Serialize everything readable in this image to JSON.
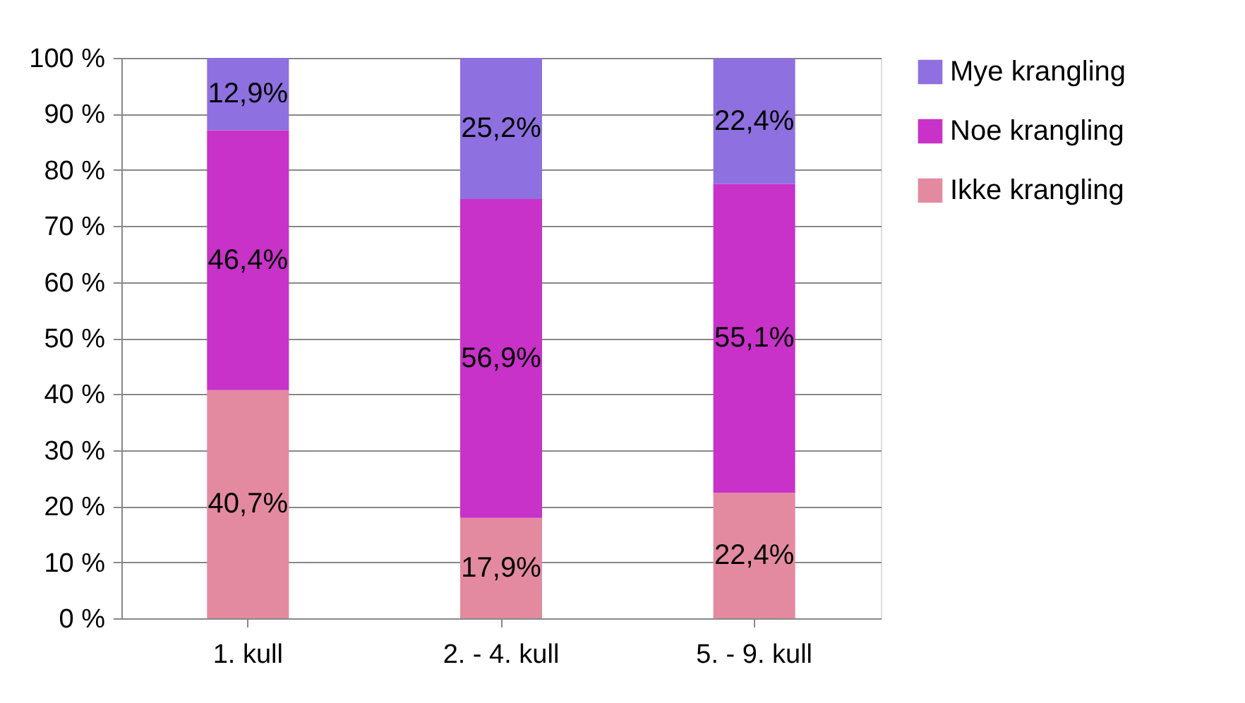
{
  "chart_data": {
    "type": "bar",
    "stacked": true,
    "categories": [
      "1. kull",
      "2. - 4. kull",
      "5. - 9. kull"
    ],
    "series": [
      {
        "name": "Ikke krangling",
        "color": "#e48aa0",
        "values": [
          40.7,
          17.9,
          22.4
        ],
        "value_labels": [
          "40,7%",
          "17,9%",
          "22,4%"
        ]
      },
      {
        "name": "Noe krangling",
        "color": "#c832c8",
        "values": [
          46.4,
          56.9,
          55.1
        ],
        "value_labels": [
          "46,4%",
          "56,9%",
          "55,1%"
        ]
      },
      {
        "name": "Mye krangling",
        "color": "#8e70e0",
        "values": [
          12.9,
          25.2,
          22.4
        ],
        "value_labels": [
          "12,9%",
          "25,2%",
          "22,4%"
        ]
      }
    ],
    "ylim": [
      0,
      100
    ],
    "yticks": [
      {
        "value": 0,
        "label": "0 %"
      },
      {
        "value": 10,
        "label": "10 %"
      },
      {
        "value": 20,
        "label": "20 %"
      },
      {
        "value": 30,
        "label": "30 %"
      },
      {
        "value": 40,
        "label": "40 %"
      },
      {
        "value": 50,
        "label": "50 %"
      },
      {
        "value": 60,
        "label": "60 %"
      },
      {
        "value": 70,
        "label": "70 %"
      },
      {
        "value": 80,
        "label": "80 %"
      },
      {
        "value": 90,
        "label": "90 %"
      },
      {
        "value": 100,
        "label": "100 %"
      }
    ],
    "grid": "y",
    "legend": "right"
  }
}
